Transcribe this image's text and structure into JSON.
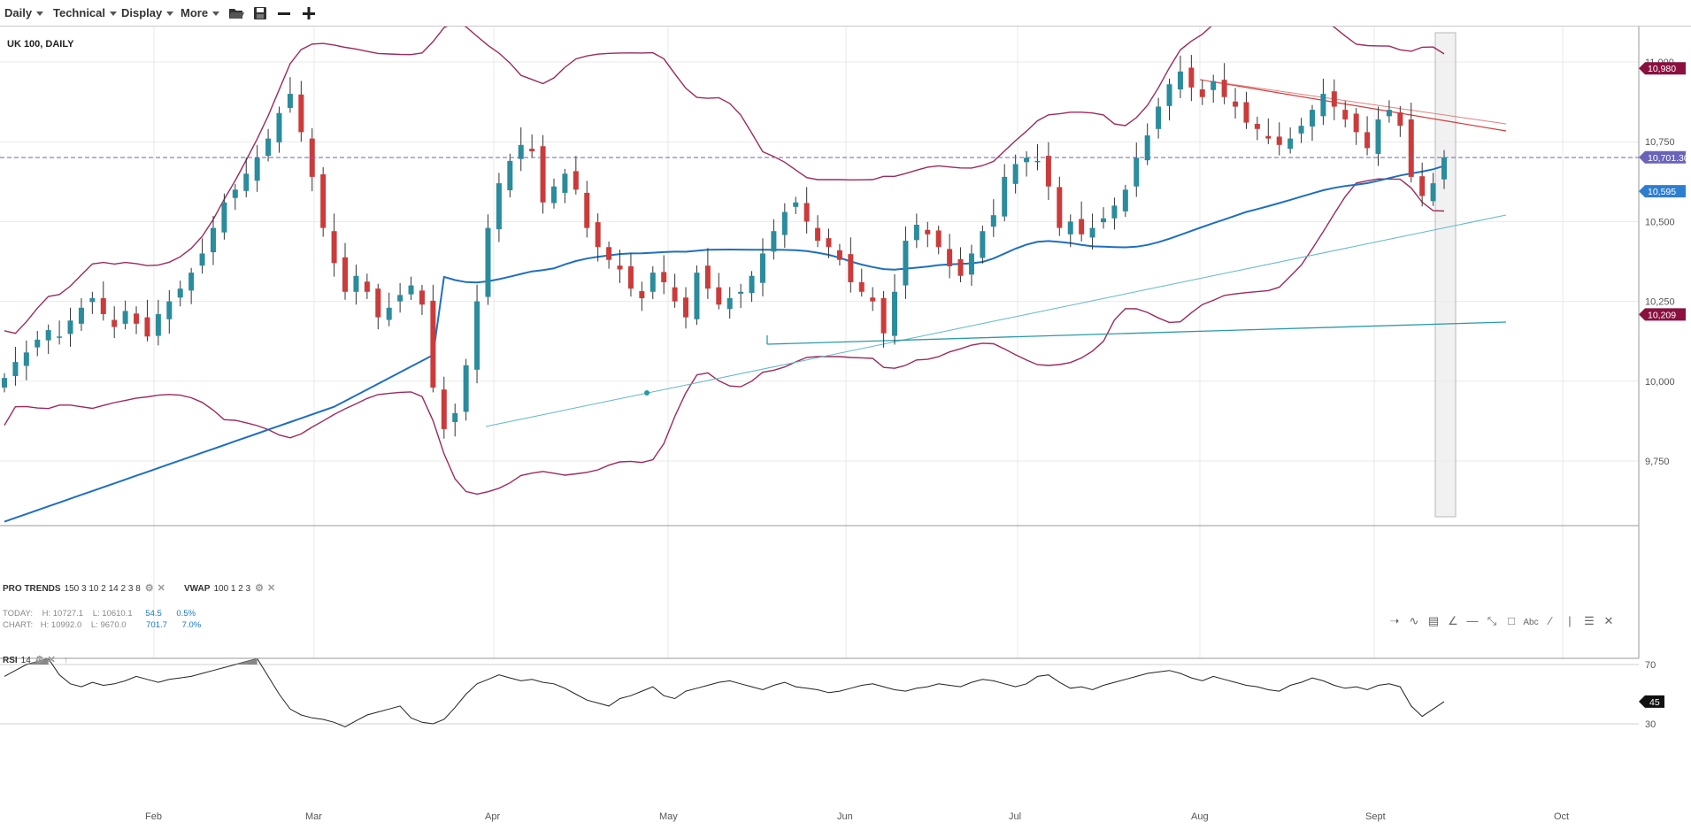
{
  "toolbar": {
    "menus": [
      "Daily",
      "Technical",
      "Display",
      "More"
    ],
    "icons": [
      "folder-open-icon",
      "save-icon",
      "zoom-out-icon",
      "zoom-in-icon"
    ]
  },
  "chart": {
    "title": "UK 100, DAILY",
    "colors": {
      "bull": "#2a8c9c",
      "bear": "#cc3b3b",
      "bollinger": "#9c2a5c",
      "ma": "#1f6fc0",
      "trendline_red": "#d23a3a",
      "trendline_teal": "#2a9aa5",
      "price_tag": "#6a64b8",
      "ma_tag": "#2d7ecf",
      "bb_tag": "#8a1040"
    },
    "price_tags": [
      "10,980",
      "10,701.30",
      "10,595",
      "10,209"
    ],
    "y_ticks": [
      "11,000",
      "10,750",
      "10,500",
      "10,250",
      "10,000",
      "9,750"
    ],
    "x_ticks": [
      "Feb",
      "Mar",
      "Apr",
      "May",
      "Jun",
      "Jul",
      "Aug",
      "Sept",
      "Oct"
    ]
  },
  "indicators": {
    "pro_trends": {
      "name": "PRO TRENDS",
      "params": "150 3 10 2 14 2 3 8"
    },
    "vwap": {
      "name": "VWAP",
      "params": "100 1 2 3"
    },
    "today": {
      "label": "TODAY:",
      "high": "H: 10727.1",
      "low": "L: 10610.1",
      "change": "54.5",
      "pct": "0.5%"
    },
    "chart": {
      "label": "CHART:",
      "high": "H: 10992.0",
      "low": "L: 9670.0",
      "change": "701.7",
      "pct": "7.0%"
    }
  },
  "rsi": {
    "label": "RSI",
    "period": "14",
    "y_ticks": [
      "70",
      "30"
    ],
    "current": "45"
  },
  "chart_data": {
    "type": "candlestick",
    "title": "UK 100, DAILY",
    "ylim": [
      9600,
      11100
    ],
    "x_ticks": [
      "Feb",
      "Mar",
      "Apr",
      "May",
      "Jun",
      "Jul",
      "Aug",
      "Sept",
      "Oct"
    ],
    "y_ticks": [
      11000,
      10750,
      10500,
      10250,
      10000,
      9750
    ],
    "last_price": 10701.3,
    "ma_last": 10595,
    "bb_upper_last": 10980,
    "bb_lower_last": 10209,
    "closes": [
      10010,
      10060,
      10090,
      10130,
      10160,
      10140,
      10190,
      10230,
      10260,
      10210,
      10170,
      10220,
      10180,
      10140,
      10210,
      10250,
      10290,
      10340,
      10400,
      10480,
      10560,
      10600,
      10650,
      10700,
      10760,
      10840,
      10900,
      10780,
      10640,
      10480,
      10370,
      10280,
      10330,
      10280,
      10200,
      10230,
      10270,
      10300,
      10240,
      9980,
      9850,
      9900,
      10050,
      10250,
      10480,
      10620,
      10690,
      10740,
      10720,
      10560,
      10610,
      10650,
      10600,
      10480,
      10420,
      10380,
      10350,
      10290,
      10260,
      10340,
      10310,
      10250,
      10200,
      10340,
      10290,
      10240,
      10260,
      10280,
      10330,
      10400,
      10470,
      10530,
      10560,
      10500,
      10440,
      10420,
      10380,
      10310,
      10280,
      10250,
      10150,
      10280,
      10440,
      10490,
      10460,
      10420,
      10360,
      10330,
      10400,
      10470,
      10520,
      10640,
      10680,
      10700,
      10690,
      10610,
      10480,
      10500,
      10460,
      10480,
      10510,
      10550,
      10600,
      10700,
      10770,
      10860,
      10930,
      10970,
      10920,
      10890,
      10940,
      10890,
      10860,
      10810,
      10790,
      10760,
      10740,
      10760,
      10800,
      10850,
      10900,
      10860,
      10820,
      10780,
      10730,
      10820,
      10850,
      10800,
      10640,
      10580,
      10620,
      10701.3
    ],
    "rsi_ylim": [
      0,
      100
    ],
    "rsi_bands": [
      30,
      70
    ],
    "rsi_values": [
      62,
      66,
      70,
      72,
      74,
      63,
      57,
      55,
      58,
      56,
      57,
      59,
      62,
      60,
      58,
      60,
      61,
      62,
      64,
      66,
      68,
      70,
      72,
      74,
      62,
      50,
      40,
      36,
      34,
      33,
      31,
      28,
      32,
      36,
      38,
      40,
      42,
      34,
      31,
      30,
      33,
      41,
      50,
      57,
      60,
      63,
      61,
      59,
      60,
      58,
      57,
      54,
      50,
      46,
      44,
      42,
      47,
      49,
      52,
      55,
      49,
      47,
      52,
      54,
      56,
      58,
      59,
      57,
      55,
      53,
      56,
      58,
      55,
      54,
      53,
      51,
      52,
      54,
      56,
      57,
      55,
      53,
      52,
      54,
      55,
      57,
      56,
      55,
      58,
      60,
      59,
      57,
      55,
      57,
      62,
      63,
      58,
      54,
      55,
      53,
      56,
      58,
      60,
      62,
      64,
      65,
      66,
      64,
      61,
      59,
      62,
      60,
      58,
      56,
      55,
      53,
      52,
      56,
      58,
      61,
      59,
      56,
      54,
      55,
      53,
      56,
      57,
      55,
      42,
      35,
      40,
      45
    ]
  }
}
